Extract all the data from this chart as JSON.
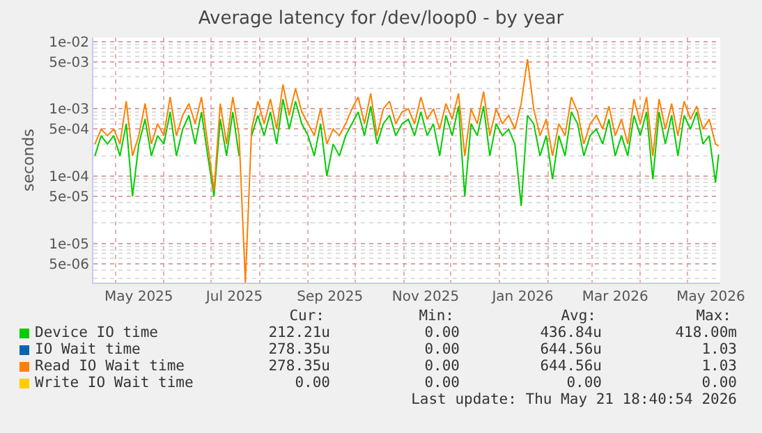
{
  "chart_data": {
    "type": "line",
    "title": "Average latency for /dev/loop0 - by year",
    "ylabel": "seconds",
    "log": true,
    "grid": true,
    "legend": "bottom",
    "line_style": "solid",
    "xlim": [
      "2025-04-17",
      "2026-05-22"
    ],
    "xticks": [
      {
        "value": "2025-05-16",
        "label": "May 2025"
      },
      {
        "value": "2025-07-16",
        "label": "Jul 2025"
      },
      {
        "value": "2025-09-15",
        "label": "Sep 2025"
      },
      {
        "value": "2025-11-15",
        "label": "Nov 2025"
      },
      {
        "value": "2026-01-16",
        "label": "Jan 2026"
      },
      {
        "value": "2026-03-16",
        "label": "Mar 2026"
      },
      {
        "value": "2026-05-16",
        "label": "May 2026"
      }
    ],
    "ylim": [
      2.6e-06,
      0.0115
    ],
    "yticks": [
      {
        "value": 5e-06,
        "label": "5e-06"
      },
      {
        "value": 1e-05,
        "label": "1e-05"
      },
      {
        "value": 5e-05,
        "label": "5e-05"
      },
      {
        "value": 0.0001,
        "label": "1e-04"
      },
      {
        "value": 0.0005,
        "label": "5e-04"
      },
      {
        "value": 0.001,
        "label": "1e-03"
      },
      {
        "value": 0.005,
        "label": "5e-03"
      },
      {
        "value": 0.01,
        "label": "1e-02"
      }
    ],
    "x": [
      "2025-04-18",
      "2025-04-22",
      "2025-04-26",
      "2025-04-30",
      "2025-05-04",
      "2025-05-08",
      "2025-05-12",
      "2025-05-16",
      "2025-05-20",
      "2025-05-24",
      "2025-05-28",
      "2025-06-01",
      "2025-06-05",
      "2025-06-09",
      "2025-06-13",
      "2025-06-17",
      "2025-06-21",
      "2025-06-25",
      "2025-06-29",
      "2025-07-03",
      "2025-07-07",
      "2025-07-11",
      "2025-07-15",
      "2025-07-19",
      "2025-07-23",
      "2025-07-27",
      "2025-07-31",
      "2025-08-04",
      "2025-08-08",
      "2025-08-12",
      "2025-08-16",
      "2025-08-20",
      "2025-08-24",
      "2025-08-28",
      "2025-09-01",
      "2025-09-05",
      "2025-09-09",
      "2025-09-13",
      "2025-09-17",
      "2025-09-21",
      "2025-09-25",
      "2025-09-29",
      "2025-10-03",
      "2025-10-07",
      "2025-10-11",
      "2025-10-15",
      "2025-10-19",
      "2025-10-23",
      "2025-10-27",
      "2025-10-31",
      "2025-11-04",
      "2025-11-08",
      "2025-11-12",
      "2025-11-16",
      "2025-11-20",
      "2025-11-24",
      "2025-11-28",
      "2025-12-02",
      "2025-12-06",
      "2025-12-10",
      "2025-12-14",
      "2025-12-18",
      "2025-12-22",
      "2025-12-26",
      "2025-12-30",
      "2026-01-03",
      "2026-01-07",
      "2026-01-11",
      "2026-01-15",
      "2026-01-19",
      "2026-01-23",
      "2026-01-27",
      "2026-01-31",
      "2026-02-04",
      "2026-02-08",
      "2026-02-12",
      "2026-02-16",
      "2026-02-20",
      "2026-02-24",
      "2026-02-28",
      "2026-03-04",
      "2026-03-08",
      "2026-03-12",
      "2026-03-16",
      "2026-03-20",
      "2026-03-24",
      "2026-03-28",
      "2026-04-01",
      "2026-04-05",
      "2026-04-09",
      "2026-04-13",
      "2026-04-17",
      "2026-04-21",
      "2026-04-25",
      "2026-04-29",
      "2026-05-03",
      "2026-05-07",
      "2026-05-11",
      "2026-05-15",
      "2026-05-19",
      "2026-05-21"
    ],
    "series": [
      {
        "name": "Device IO time",
        "color": "#00cc00",
        "values": [
          0.0002,
          0.0004,
          0.0003,
          0.0004,
          0.0002,
          0.0006,
          5e-05,
          0.0003,
          0.0007,
          0.0002,
          0.0004,
          0.0003,
          0.0009,
          0.0002,
          0.0005,
          0.0008,
          0.0003,
          0.0009,
          0.0002,
          5e-05,
          0.0007,
          0.0002,
          0.0009,
          0.0002,
          null,
          0.0004,
          0.0008,
          0.0004,
          0.0009,
          0.0003,
          0.0014,
          0.0005,
          0.0013,
          0.0006,
          0.0004,
          0.0002,
          0.0006,
          0.0001,
          0.0003,
          0.0002,
          0.0004,
          0.0006,
          0.0009,
          0.0004,
          0.0011,
          0.0003,
          0.0006,
          0.0008,
          0.0004,
          0.0006,
          0.0007,
          0.0004,
          0.0009,
          0.0004,
          0.0006,
          0.0002,
          0.0008,
          0.0004,
          0.0011,
          5e-05,
          0.0006,
          0.0004,
          0.0011,
          0.0002,
          0.0006,
          0.0004,
          0.0005,
          0.0003,
          3.6e-05,
          0.0008,
          0.0006,
          0.0002,
          0.0004,
          9e-05,
          0.0004,
          0.0002,
          0.0009,
          0.0006,
          0.0002,
          0.0004,
          0.0005,
          0.0003,
          0.0007,
          0.0002,
          0.0004,
          0.0002,
          0.0008,
          0.0004,
          0.0009,
          9e-05,
          0.0009,
          0.0003,
          0.0008,
          0.0002,
          0.0008,
          0.0005,
          0.0009,
          0.0003,
          0.0004,
          8e-05,
          0.00021
        ]
      },
      {
        "name": "IO Wait time",
        "color": "#0066b3",
        "values": [
          null,
          null,
          null,
          null,
          null,
          null,
          null,
          null,
          null,
          null,
          null,
          null,
          null,
          null,
          null,
          null,
          null,
          null,
          null,
          null,
          null,
          null,
          null,
          null,
          null,
          null,
          null,
          null,
          null,
          null,
          null,
          null,
          null,
          null,
          null,
          null,
          null,
          null,
          null,
          null,
          null,
          null,
          null,
          null,
          null,
          null,
          null,
          null,
          null,
          null,
          null,
          null,
          null,
          null,
          null,
          null,
          null,
          null,
          null,
          null,
          null,
          null,
          null,
          null,
          null,
          null,
          null,
          null,
          null,
          null,
          null,
          null,
          null,
          null,
          null,
          null,
          null,
          null,
          null,
          null,
          null,
          null,
          null,
          null,
          null,
          null,
          null,
          null,
          null,
          null,
          null,
          null,
          null,
          null,
          null,
          null,
          null,
          null,
          null,
          null,
          null
        ]
      },
      {
        "name": "Read IO Wait time",
        "color": "#ff8000",
        "values": [
          0.0003,
          0.0005,
          0.0004,
          0.0005,
          0.0003,
          0.0013,
          0.0002,
          0.0004,
          0.0012,
          0.0003,
          0.0006,
          0.0004,
          0.0015,
          0.0004,
          0.0008,
          0.0012,
          0.0006,
          0.0015,
          0.0003,
          6e-05,
          0.0012,
          0.0003,
          0.0015,
          0.0004,
          2.6e-06,
          0.0005,
          0.0013,
          0.0006,
          0.0014,
          0.0005,
          0.0023,
          0.0008,
          0.002,
          0.0009,
          0.0006,
          0.0004,
          0.001,
          0.0003,
          0.0005,
          0.0004,
          0.0006,
          0.001,
          0.0015,
          0.0006,
          0.0017,
          0.0004,
          0.001,
          0.0013,
          0.0006,
          0.0009,
          0.001,
          0.0006,
          0.0015,
          0.0007,
          0.001,
          0.0005,
          0.0012,
          0.0007,
          0.0017,
          0.0002,
          0.001,
          0.0006,
          0.0018,
          0.0004,
          0.001,
          0.0006,
          0.0008,
          0.0005,
          0.0012,
          0.0055,
          0.001,
          0.0004,
          0.0007,
          0.0002,
          0.0006,
          0.0004,
          0.0015,
          0.0009,
          0.0003,
          0.0006,
          0.0008,
          0.0005,
          0.0011,
          0.0004,
          0.0007,
          0.0003,
          0.0014,
          0.0006,
          0.0015,
          0.0002,
          0.0014,
          0.0005,
          0.0012,
          0.0004,
          0.0013,
          0.0007,
          0.0011,
          0.0005,
          0.0007,
          0.0003,
          0.00028
        ]
      },
      {
        "name": "Write IO Wait time",
        "color": "#ffcc00",
        "values": [
          null,
          null,
          null,
          null,
          null,
          null,
          null,
          null,
          null,
          null,
          null,
          null,
          null,
          null,
          null,
          null,
          null,
          null,
          null,
          null,
          null,
          null,
          null,
          null,
          null,
          null,
          null,
          null,
          null,
          null,
          null,
          null,
          null,
          null,
          null,
          null,
          null,
          null,
          null,
          null,
          null,
          null,
          null,
          null,
          null,
          null,
          null,
          null,
          null,
          null,
          null,
          null,
          null,
          null,
          null,
          null,
          null,
          null,
          null,
          null,
          null,
          null,
          null,
          null,
          null,
          null,
          null,
          null,
          null,
          null,
          null,
          null,
          null,
          null,
          null,
          null,
          null,
          null,
          null,
          null,
          null,
          null,
          null,
          null,
          null,
          null,
          null,
          null,
          null,
          null,
          null,
          null,
          null,
          null,
          null,
          null,
          null,
          null,
          null,
          null,
          null
        ]
      }
    ],
    "annotations": [
      "Cur:",
      "Min:",
      "Avg:",
      "Max:",
      "212.21u",
      "0.00",
      "436.84u",
      "418.00m",
      "278.35u",
      "0.00",
      "644.56u",
      "1.03",
      "278.35u",
      "0.00",
      "644.56u",
      "1.03",
      "0.00",
      "0.00",
      "0.00",
      "0.00",
      "Last update: Thu May 21 18:40:54 2026"
    ]
  }
}
